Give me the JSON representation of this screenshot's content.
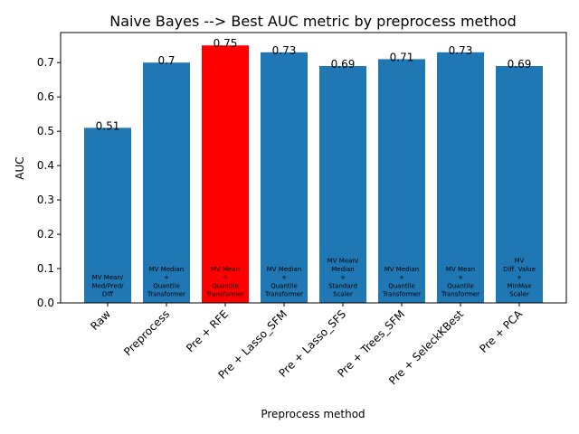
{
  "chart_data": {
    "type": "bar",
    "title": "Naive Bayes --> Best AUC metric by preprocess method",
    "xlabel": "Preprocess method",
    "ylabel": "AUC",
    "ylim": [
      0,
      0.7875
    ],
    "yticks": [
      0.0,
      0.1,
      0.2,
      0.3,
      0.4,
      0.5,
      0.6,
      0.7
    ],
    "ytick_labels": [
      "0.0",
      "0.1",
      "0.2",
      "0.3",
      "0.4",
      "0.5",
      "0.6",
      "0.7"
    ],
    "grid": false,
    "categories": [
      "Raw",
      "Preprocess",
      "Pre + RFE",
      "Pre + Lasso_SFM",
      "Pre + Lasso_SFS",
      "Pre + Trees_SFM",
      "Pre + SeleckKBest",
      "Pre + PCA"
    ],
    "values": [
      0.51,
      0.7,
      0.75,
      0.73,
      0.69,
      0.71,
      0.73,
      0.69
    ],
    "value_labels": [
      "0.51",
      "0.7",
      "0.75",
      "0.73",
      "0.69",
      "0.71",
      "0.73",
      "0.69"
    ],
    "annotations": [
      [
        "MV Mean/",
        "Med/Pred/",
        "Diff"
      ],
      [
        "MV Median",
        "+",
        "Quantile",
        "Transformer"
      ],
      [
        "MV Mean",
        "+",
        "Quantile",
        "Transformer"
      ],
      [
        "MV Median",
        "+",
        "Quantile",
        "Transformer"
      ],
      [
        "MV Mean/",
        "Median",
        "+",
        "Standard",
        "Scaler"
      ],
      [
        "MV Median",
        "+",
        "Quantile",
        "Transformer"
      ],
      [
        "MV Mean",
        "+",
        "Quantile",
        "Transformer"
      ],
      [
        "MV",
        "Diff. Value",
        "+",
        "MinMax",
        "Scaler"
      ]
    ],
    "highlight_index": 2,
    "colors": {
      "bar": "#1f77b4",
      "highlight": "#ff0000"
    }
  }
}
